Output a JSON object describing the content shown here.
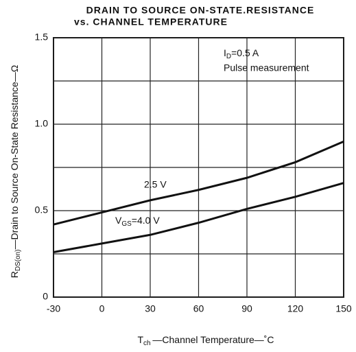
{
  "chart_data": {
    "type": "line",
    "title": "DRAIN TO SOURCE ON-STATE.RESISTANCE",
    "subtitle": "vs. CHANNEL TEMPERATURE",
    "x_label": "Tch —Channel Temperature—˚C",
    "y_label": "RDS(on)—Drain to Source On-State Resistance—Ω",
    "annotations": [
      "ID=0.5 A",
      "Pulse measurement"
    ],
    "x": [
      -30,
      0,
      30,
      60,
      90,
      120,
      150
    ],
    "series": [
      {
        "name": "2.5 V",
        "color": "#111111",
        "values": [
          0.42,
          0.49,
          0.56,
          0.62,
          0.69,
          0.78,
          0.9
        ]
      },
      {
        "name": "VGS=4.0 V",
        "color": "#111111",
        "values": [
          0.26,
          0.31,
          0.36,
          0.43,
          0.51,
          0.58,
          0.66
        ]
      }
    ],
    "xlim": [
      -30,
      150
    ],
    "xticks": [
      -30,
      0,
      30,
      60,
      90,
      120,
      150
    ],
    "ylim": [
      0,
      1.5
    ],
    "yticks": [
      0,
      0.5,
      {
        "value": 1,
        "label": "1.0"
      },
      1.5
    ],
    "minor_ygrid": [
      0.25,
      0.75,
      1.25
    ],
    "grid": true
  }
}
